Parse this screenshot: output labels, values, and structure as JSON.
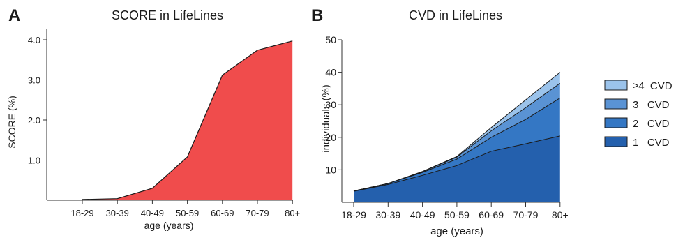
{
  "chart_data": [
    {
      "panel": "A",
      "type": "area",
      "title": "SCORE in  LifeLines",
      "xlabel": "age (years)",
      "ylabel": "SCORE (%)",
      "categories": [
        "18-29",
        "30-39",
        "40-49",
        "50-59",
        "60-69",
        "70-79",
        "80+"
      ],
      "ylim": [
        0,
        4.0
      ],
      "yticks": [
        1.0,
        2.0,
        3.0,
        4.0
      ],
      "ytick_labels": [
        "1.0",
        "2.0",
        "3.0",
        "4.0"
      ],
      "values": [
        0.02,
        0.04,
        0.3,
        1.08,
        3.12,
        3.74,
        3.97
      ],
      "fill_color": "#f04c4c",
      "line_color": "#1a1a1a",
      "grid": false
    },
    {
      "panel": "B",
      "type": "area",
      "stacked": true,
      "title": "CVD in LifeLines",
      "xlabel": "age (years)",
      "ylabel": "individuals (%)",
      "categories": [
        "18-29",
        "30-39",
        "40-49",
        "50-59",
        "60-69",
        "70-79",
        "80+"
      ],
      "ylim": [
        0,
        50
      ],
      "yticks": [
        10,
        20,
        30,
        40,
        50
      ],
      "ytick_labels": [
        "10",
        "20",
        "30",
        "40",
        "50"
      ],
      "series": [
        {
          "name": "1   CVD",
          "values": [
            3.4,
            5.5,
            8.3,
            11.3,
            15.7,
            18.0,
            20.4
          ],
          "color": "#2460ad"
        },
        {
          "name": "2   CVD",
          "values": [
            0.1,
            0.3,
            0.9,
            2.0,
            4.3,
            7.5,
            11.7
          ],
          "color": "#3477c4"
        },
        {
          "name": "3   CVD",
          "values": [
            0.0,
            0.0,
            0.2,
            0.6,
            2.0,
            3.6,
            4.5
          ],
          "color": "#5a93d4"
        },
        {
          "name": "≥4  CVD",
          "values": [
            0.0,
            0.0,
            0.1,
            0.2,
            1.0,
            2.4,
            3.4
          ],
          "color": "#9bc3eb"
        }
      ],
      "legend": "right",
      "legend_order": [
        "≥4  CVD",
        "3   CVD",
        "2   CVD",
        "1   CVD"
      ],
      "line_color": "#1a1a1a",
      "grid": false
    }
  ],
  "panel_labels": [
    "A",
    "B"
  ]
}
